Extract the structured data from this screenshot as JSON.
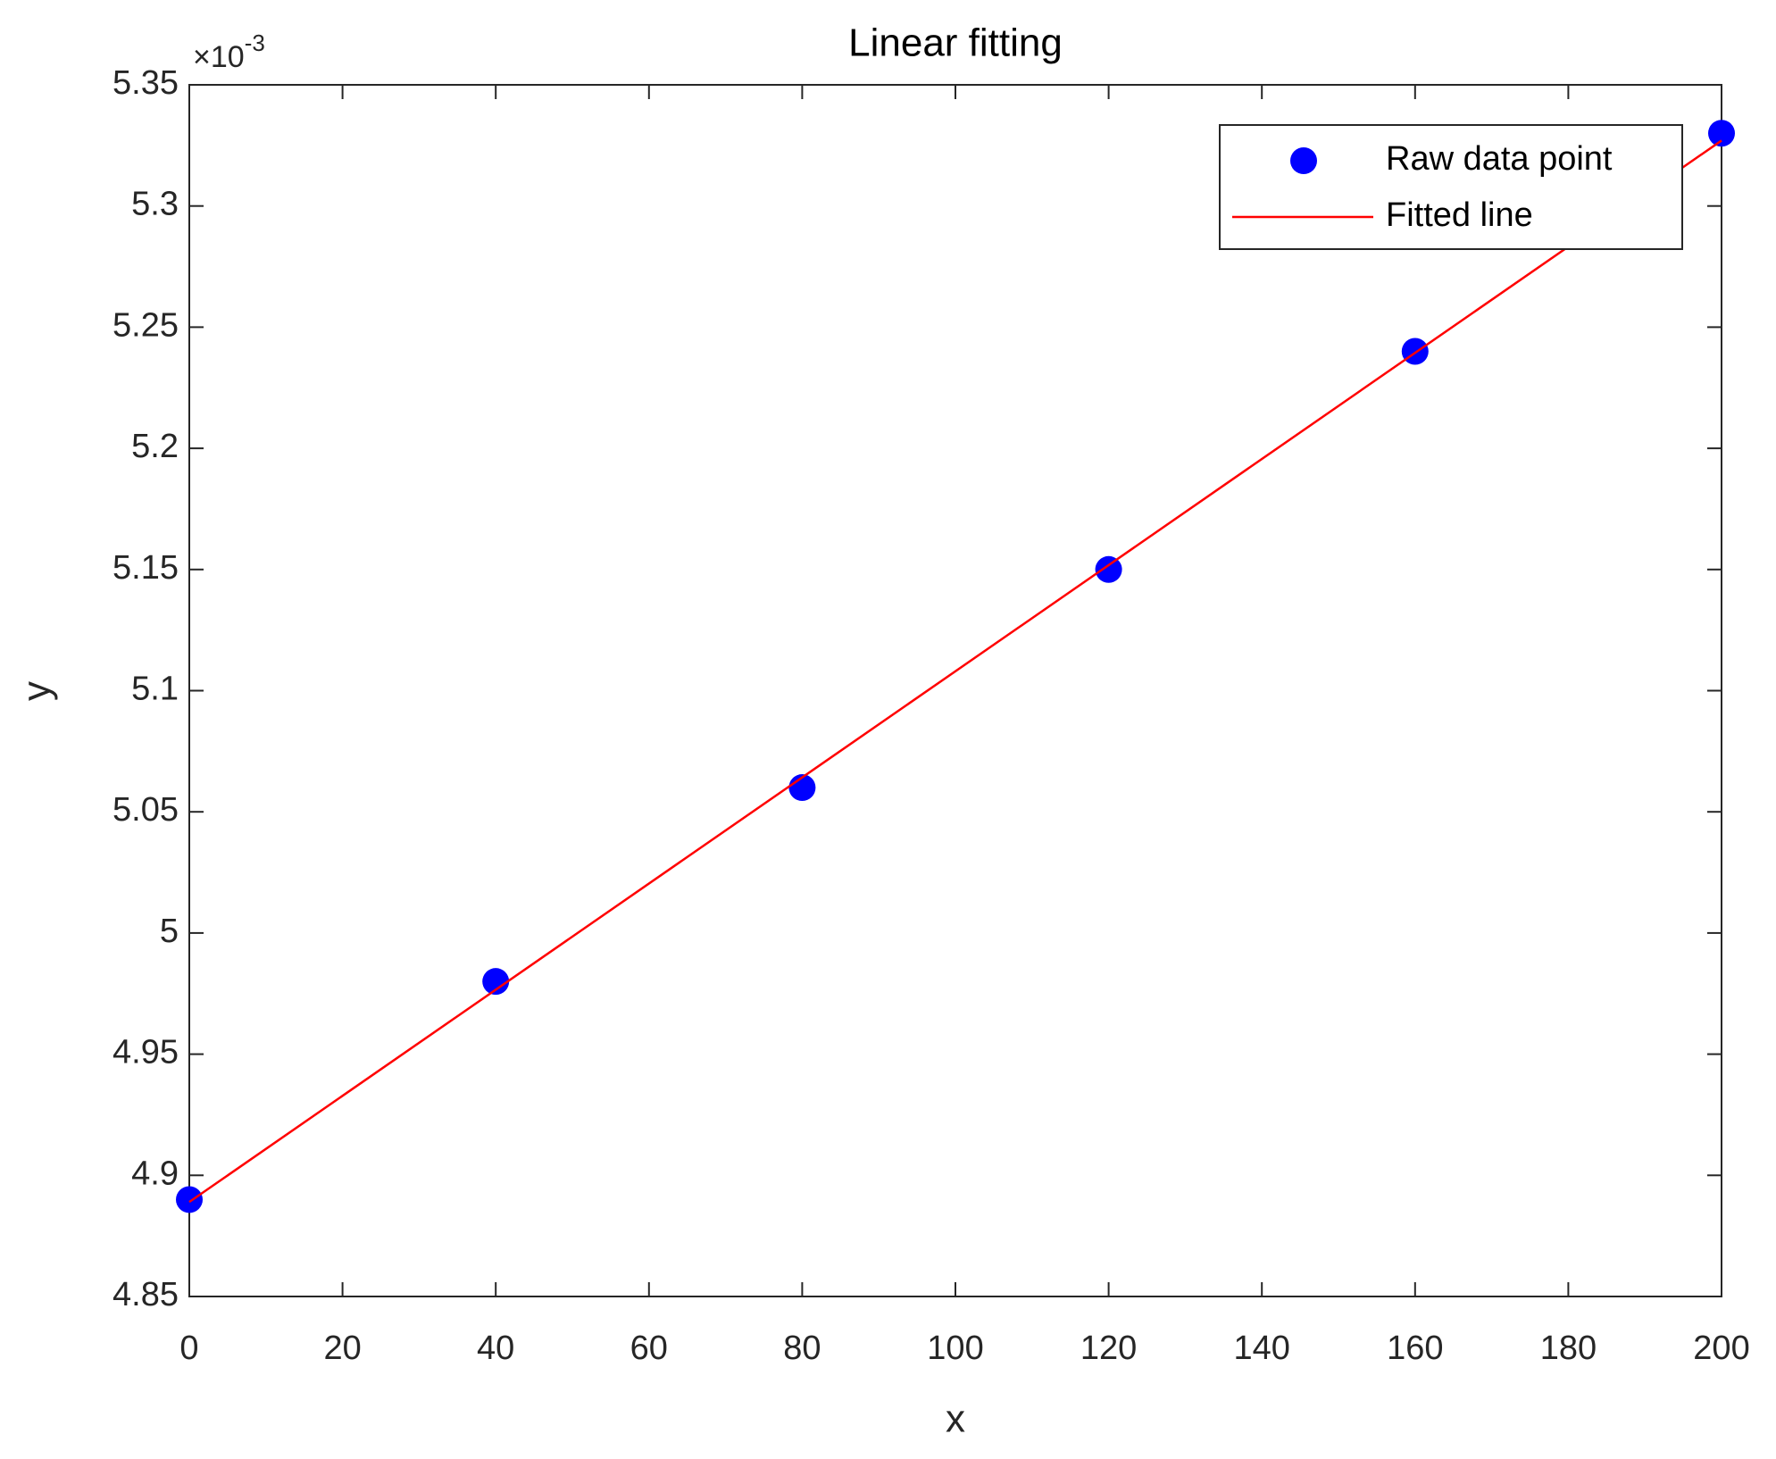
{
  "chart_data": {
    "type": "scatter-line",
    "title": "Linear fitting",
    "x_label": "x",
    "y_label": "y",
    "y_multiplier": {
      "base": "×10",
      "exponent": "-3"
    },
    "series": [
      {
        "name": "Raw data point",
        "style": "markers",
        "color": "#0000ff",
        "x": [
          0,
          40,
          80,
          120,
          160,
          200
        ],
        "values": [
          4.89,
          4.98,
          5.06,
          5.15,
          5.24,
          5.33
        ]
      },
      {
        "name": "Fitted line",
        "style": "line",
        "color": "#ff0000",
        "x": [
          0,
          200
        ],
        "values": [
          4.889,
          5.327
        ]
      }
    ],
    "xlim": [
      0,
      200
    ],
    "xticks": [
      0,
      20,
      40,
      60,
      80,
      100,
      120,
      140,
      160,
      180,
      200
    ],
    "ylim": [
      4.85,
      5.35
    ],
    "yticks": [
      4.85,
      4.9,
      4.95,
      5,
      5.05,
      5.1,
      5.15,
      5.2,
      5.25,
      5.3,
      5.35
    ],
    "grid": false,
    "legend": "top-right"
  }
}
